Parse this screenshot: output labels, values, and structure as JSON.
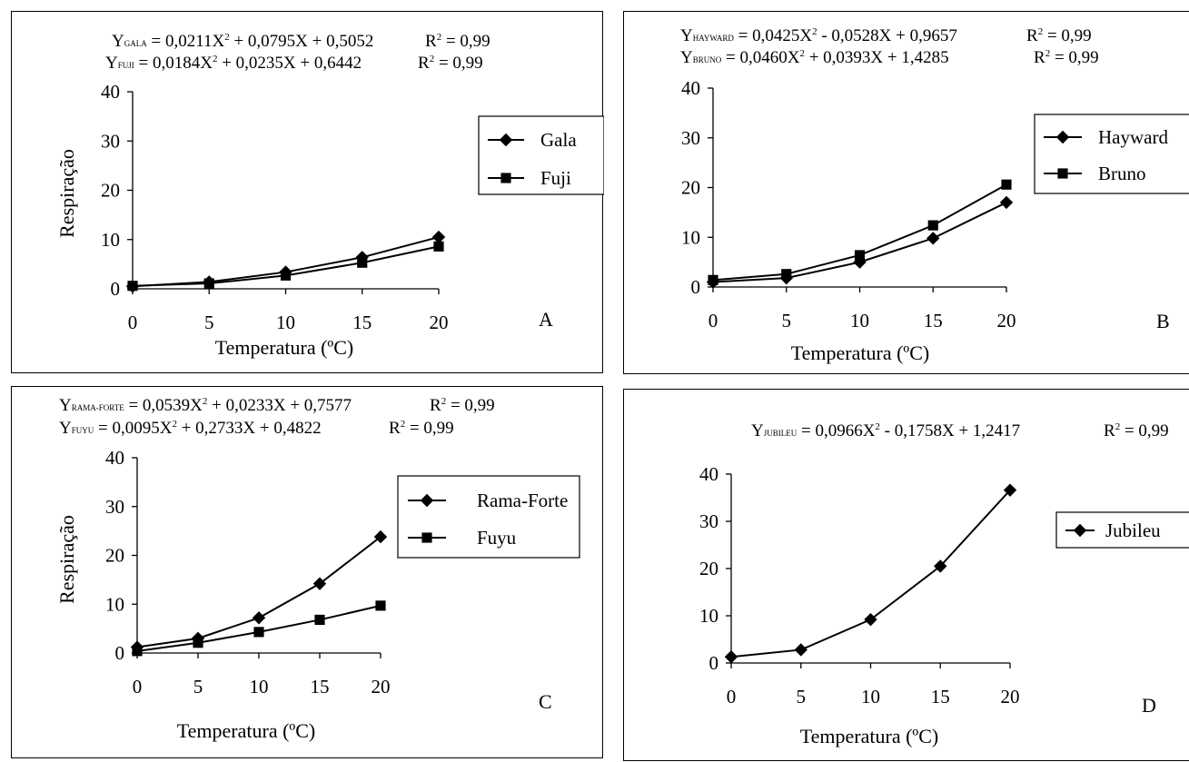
{
  "chart_data": [
    {
      "type": "line",
      "panel_letter": "A",
      "equations": [
        {
          "y": "Y",
          "sub": "GALA",
          "expr": " = 0,0211X",
          "sup": "2",
          "rest": " + 0,0795X + 0,5052",
          "r2": "R",
          "r2sup": "2",
          "r2rest": " = 0,99"
        },
        {
          "y": "Y",
          "sub": "FUJI",
          "expr": " = 0,0184X",
          "sup": "2",
          "rest": " + 0,0235X + 0,6442",
          "r2": "R",
          "r2sup": "2",
          "r2rest": " = 0,99"
        }
      ],
      "xlabel": "Temperatura (ºC)",
      "ylabel": "Respiração",
      "x": [
        0,
        5,
        10,
        15,
        20
      ],
      "xticks": [
        "0",
        "5",
        "10",
        "15",
        "20"
      ],
      "yticks": [
        "0",
        "10",
        "20",
        "30",
        "40"
      ],
      "ylim": [
        0,
        40
      ],
      "legend_position": "right",
      "series": [
        {
          "name": "Gala",
          "marker": "diamond",
          "values": [
            0.5,
            1.4,
            3.4,
            6.4,
            10.5
          ]
        },
        {
          "name": "Fuji",
          "marker": "square",
          "values": [
            0.6,
            1.1,
            2.7,
            5.3,
            8.6
          ]
        }
      ]
    },
    {
      "type": "line",
      "panel_letter": "B",
      "equations": [
        {
          "y": "Y",
          "sub": "HAYWARD",
          "expr": " = 0,0425X",
          "sup": "2",
          "rest": " - 0,0528X + 0,9657",
          "r2": "R",
          "r2sup": "2",
          "r2rest": " = 0,99"
        },
        {
          "y": "Y",
          "sub": "BRUNO",
          "expr": " = 0,0460X",
          "sup": "2",
          "rest": " + 0,0393X + 1,4285",
          "r2": "R",
          "r2sup": "2",
          "r2rest": " = 0,99"
        }
      ],
      "xlabel": "Temperatura (ºC)",
      "ylabel": "",
      "x": [
        0,
        5,
        10,
        15,
        20
      ],
      "xticks": [
        "0",
        "5",
        "10",
        "15",
        "20"
      ],
      "yticks": [
        "0",
        "10",
        "20",
        "30",
        "40"
      ],
      "ylim": [
        0,
        40
      ],
      "legend_position": "right",
      "series": [
        {
          "name": "Hayward",
          "marker": "diamond",
          "values": [
            1.0,
            1.8,
            5.0,
            9.8,
            17.0
          ]
        },
        {
          "name": "Bruno",
          "marker": "square",
          "values": [
            1.4,
            2.6,
            6.4,
            12.4,
            20.6
          ]
        }
      ]
    },
    {
      "type": "line",
      "panel_letter": "C",
      "equations": [
        {
          "y": "Y",
          "sub": "RAMA-FORTE",
          "expr": " = 0,0539X",
          "sup": "2",
          "rest": " + 0,0233X + 0,7577",
          "r2": "R",
          "r2sup": "2",
          "r2rest": " = 0,99"
        },
        {
          "y": "Y",
          "sub": "FUYU",
          "expr": " = 0,0095X",
          "sup": "2",
          "rest": " + 0,2733X + 0,4822",
          "r2": "R",
          "r2sup": "2",
          "r2rest": " = 0,99"
        }
      ],
      "xlabel": "Temperatura (ºC)",
      "ylabel": "Respiração",
      "x": [
        0,
        5,
        10,
        15,
        20
      ],
      "xticks": [
        "0",
        "5",
        "10",
        "15",
        "20"
      ],
      "yticks": [
        "0",
        "10",
        "20",
        "30",
        "40"
      ],
      "ylim": [
        0,
        40
      ],
      "legend_position": "right",
      "series": [
        {
          "name": "Rama-Forte",
          "marker": "diamond",
          "values": [
            1.2,
            3.0,
            7.2,
            14.2,
            23.8
          ]
        },
        {
          "name": "Fuyu",
          "marker": "square",
          "values": [
            0.4,
            2.1,
            4.3,
            6.8,
            9.7
          ]
        }
      ]
    },
    {
      "type": "line",
      "panel_letter": "D",
      "equations": [
        {
          "y": "Y",
          "sub": "JUBILEU",
          "expr": " = 0,0966X",
          "sup": "2",
          "rest": " - 0,1758X + 1,2417",
          "r2": "R",
          "r2sup": "2",
          "r2rest": " = 0,99"
        }
      ],
      "xlabel": "Temperatura (ºC)",
      "ylabel": "",
      "x": [
        0,
        5,
        10,
        15,
        20
      ],
      "xticks": [
        "0",
        "5",
        "10",
        "15",
        "20"
      ],
      "yticks": [
        "0",
        "10",
        "20",
        "30",
        "40"
      ],
      "ylim": [
        0,
        40
      ],
      "legend_position": "right",
      "series": [
        {
          "name": "Jubileu",
          "marker": "diamond",
          "values": [
            1.3,
            2.8,
            9.2,
            20.5,
            36.6
          ]
        }
      ]
    }
  ]
}
